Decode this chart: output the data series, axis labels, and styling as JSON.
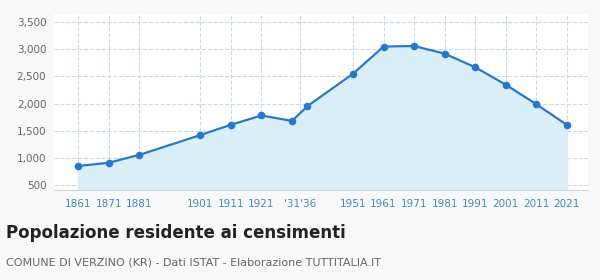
{
  "years": [
    1861,
    1871,
    1881,
    1901,
    1911,
    1921,
    1931,
    1936,
    1951,
    1961,
    1971,
    1981,
    1991,
    2001,
    2011,
    2021
  ],
  "population": [
    850,
    910,
    1055,
    1420,
    1610,
    1780,
    1680,
    1950,
    2550,
    3050,
    3060,
    2920,
    2670,
    2350,
    1990,
    1610
  ],
  "ylim": [
    400,
    3650
  ],
  "yticks": [
    500,
    1000,
    1500,
    2000,
    2500,
    3000,
    3500
  ],
  "xlim": [
    1853,
    2028
  ],
  "tick_positions": [
    1861,
    1871,
    1881,
    1901,
    1911,
    1921,
    1933.5,
    1951,
    1961,
    1971,
    1981,
    1991,
    2001,
    2011,
    2021
  ],
  "tick_labels": [
    "1861",
    "1871",
    "1881",
    "1901",
    "1911",
    "1921",
    "'31'36",
    "1951",
    "1961",
    "1971",
    "1981",
    "1991",
    "2001",
    "2011",
    "2021"
  ],
  "line_color": "#2878c8",
  "fill_color": "#daeef8",
  "marker_color": "#2878c8",
  "grid_color": "#c8d8e8",
  "plot_bg_color": "#ffffff",
  "fig_bg_color": "#f8f8f8",
  "title": "Popolazione residente ai censimenti",
  "subtitle": "COMUNE DI VERZINO (KR) - Dati ISTAT - Elaborazione TUTTITALIA.IT",
  "title_fontsize": 12,
  "subtitle_fontsize": 8,
  "tick_label_color": "#4488cc",
  "ytick_label_color": "#666666",
  "title_color": "#222222",
  "subtitle_color": "#666666"
}
